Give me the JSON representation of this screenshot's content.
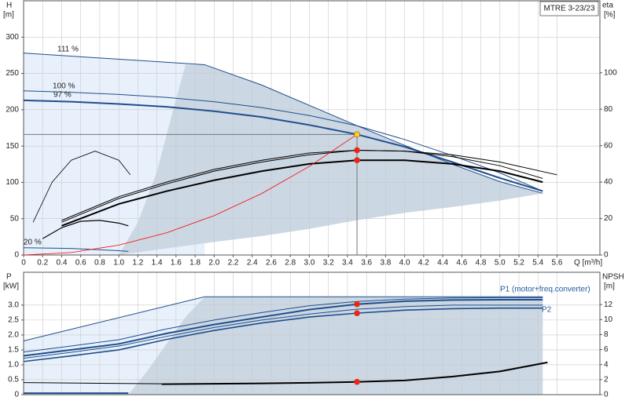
{
  "chart_data": [
    {
      "type": "line",
      "title": "MTRE 3-23/23",
      "ylabel": "H",
      "yunit": "[m]",
      "y2label": "eta",
      "y2unit": "[%]",
      "xlabel": "Q [m³/h]",
      "xlim": [
        0,
        6.05
      ],
      "ylim": [
        0,
        350
      ],
      "y2lim": [
        0,
        139.5
      ],
      "grid": true,
      "duty_lines": true,
      "xticks": [
        0,
        0.2,
        0.4,
        0.6,
        0.8,
        {
          "value": 1,
          "label": "1.0"
        },
        1.2,
        1.4,
        1.6,
        1.8,
        {
          "value": 2,
          "label": "2.0"
        },
        2.2,
        2.4,
        2.6,
        2.8,
        {
          "value": 3,
          "label": "3.0"
        },
        3.2,
        3.4,
        3.6,
        3.8,
        {
          "value": 4,
          "label": "4.0"
        },
        4.2,
        4.4,
        4.6,
        4.8,
        {
          "value": 5,
          "label": "5.0"
        },
        5.2,
        5.4,
        5.6
      ],
      "yticks": [
        0,
        50,
        100,
        150,
        200,
        250,
        300
      ],
      "y2ticks": [
        0,
        20,
        40,
        60,
        80,
        100
      ],
      "areas": [
        {
          "color": "#e8f1fb",
          "x": [
            0,
            1.9,
            1.9,
            0
          ],
          "values": [
            278,
            262,
            0,
            0
          ]
        },
        {
          "color": "#cbd7e3",
          "x": [
            1.0,
            1.2,
            1.4,
            1.55,
            1.7,
            1.9,
            2.5,
            3,
            3.5,
            4,
            4.5,
            5,
            5.45,
            5.0,
            4.5,
            4.0,
            3.5,
            3.0,
            2.5,
            2.0,
            1.5,
            1.1
          ],
          "values": [
            0,
            45,
            115,
            190,
            262,
            262,
            234,
            206,
            178,
            151,
            125,
            101,
            85,
            75,
            66,
            58,
            48,
            36,
            26,
            18,
            9,
            2
          ]
        }
      ],
      "series": [
        {
          "name": "111 %",
          "color": "#1f4e8c",
          "linewidth": 1,
          "x": [
            0,
            1.9,
            2.5,
            3,
            3.5,
            4,
            4.5,
            5,
            5.45
          ],
          "values": [
            278,
            262,
            234,
            206,
            178,
            151,
            125,
            101,
            85
          ]
        },
        {
          "name": "100 %",
          "color": "#1f4e8c",
          "linewidth": 1,
          "x": [
            0,
            0.5,
            1,
            1.5,
            2,
            2.5,
            3,
            3.5,
            4,
            4.5,
            5,
            5.45
          ],
          "values": [
            226,
            224,
            221,
            217,
            211,
            203,
            192,
            178,
            159,
            137,
            113,
            88
          ]
        },
        {
          "name": "97 %",
          "color": "#1f4e8c",
          "linewidth": 2,
          "x": [
            0,
            0.5,
            1,
            1.5,
            2,
            2.5,
            3,
            3.5,
            4,
            4.5,
            5,
            5.45
          ],
          "values": [
            213,
            211,
            208,
            204,
            198,
            190,
            179,
            166,
            149,
            128,
            106,
            88
          ]
        },
        {
          "name": "20 %",
          "color": "#1f4e8c",
          "linewidth": 1,
          "x": [
            0,
            0.5,
            1,
            1.1
          ],
          "values": [
            10,
            9,
            6,
            5
          ]
        },
        {
          "axis": "y2",
          "color": "#000000",
          "linewidth": 2,
          "x": [
            0.4,
            1,
            1.5,
            2,
            2.5,
            3,
            3.5,
            4,
            4.5,
            5,
            5.45
          ],
          "values": [
            16,
            28,
            35,
            41,
            46,
            50,
            52,
            52,
            50,
            46,
            40
          ]
        },
        {
          "axis": "y2",
          "color": "#000000",
          "linewidth": 1,
          "x": [
            0.4,
            1,
            1.5,
            2,
            2.5,
            3,
            3.5,
            4,
            4.5,
            5,
            5.45
          ],
          "values": [
            18,
            31,
            39,
            46,
            51,
            55,
            57.5,
            57,
            54,
            49,
            42
          ]
        },
        {
          "axis": "y2",
          "color": "#000000",
          "linewidth": 1,
          "x": [
            0.4,
            1,
            1.5,
            2,
            2.5,
            3,
            3.5,
            4,
            4.5,
            5,
            5.6
          ],
          "values": [
            19,
            32,
            40,
            47,
            52,
            56,
            57.5,
            57,
            55,
            51,
            44
          ]
        },
        {
          "axis": "y2",
          "color": "#000000",
          "linewidth": 0.8,
          "x": [
            0.1,
            0.3,
            0.5,
            0.75,
            1,
            1.12
          ],
          "values": [
            18,
            40,
            52,
            57,
            52,
            44
          ]
        },
        {
          "axis": "y2",
          "color": "#000000",
          "linewidth": 1.2,
          "x": [
            0.2,
            0.4,
            0.6,
            0.8,
            1,
            1.1
          ],
          "values": [
            9,
            15,
            18.5,
            19,
            17.5,
            16
          ]
        },
        {
          "color": "#ff0000",
          "linewidth": 0.8,
          "x": [
            0,
            0.5,
            1,
            1.5,
            2,
            2.5,
            3,
            3.5
          ],
          "values": [
            0,
            3.4,
            13.6,
            30.5,
            54.2,
            84.7,
            122,
            166
          ]
        }
      ],
      "points": [
        {
          "x": 3.5,
          "value": 166,
          "color": "#ffd21f"
        },
        {
          "x": 3.5,
          "value": 57.5,
          "axis": "y2",
          "color": "#ff1a1a"
        },
        {
          "x": 3.5,
          "value": 52,
          "axis": "y2",
          "color": "#ff1a1a"
        }
      ]
    },
    {
      "type": "line",
      "ylabel": "P",
      "yunit": "[kW]",
      "y2label": "NPSH",
      "y2unit": "[m]",
      "xlim": [
        0,
        6.05
      ],
      "ylim": [
        0,
        4.1
      ],
      "y2lim": [
        0,
        16.3
      ],
      "grid": true,
      "yticks": [
        0,
        0.5,
        {
          "value": 1,
          "label": "1.0"
        },
        1.5,
        {
          "value": 2,
          "label": "2.0"
        },
        2.5,
        {
          "value": 3,
          "label": "3.0"
        }
      ],
      "y2ticks": [
        0,
        2,
        4,
        6,
        8,
        10,
        12
      ],
      "areas": [
        {
          "color": "#e8f1fb",
          "x": [
            0,
            1.9,
            1.9,
            0
          ],
          "values": [
            1.8,
            3.28,
            0,
            0
          ]
        },
        {
          "color": "#cbd7e3",
          "x": [
            1.1,
            1.3,
            1.5,
            1.7,
            1.9,
            5.45,
            5.45
          ],
          "values": [
            0,
            0.8,
            1.7,
            2.6,
            3.28,
            3.28,
            0
          ]
        }
      ],
      "series": [
        {
          "color": "#1f4e8c",
          "linewidth": 1,
          "x": [
            0,
            1.9,
            5.45
          ],
          "values": [
            1.8,
            3.28,
            3.28
          ]
        },
        {
          "color": "#1f4e8c",
          "linewidth": 1,
          "x": [
            0,
            0.5,
            1,
            1.5,
            2,
            2.5,
            3,
            3.5,
            4,
            4.5,
            5,
            5.45
          ],
          "values": [
            1.43,
            1.63,
            1.84,
            2.2,
            2.5,
            2.75,
            2.98,
            3.12,
            3.2,
            3.24,
            3.25,
            3.25
          ]
        },
        {
          "color": "#1f4e8c",
          "linewidth": 2,
          "x": [
            0,
            0.5,
            1,
            1.5,
            2,
            2.5,
            3,
            3.5,
            4,
            4.5,
            5,
            5.45
          ],
          "values": [
            1.3,
            1.5,
            1.7,
            2.05,
            2.35,
            2.6,
            2.85,
            3.03,
            3.13,
            3.17,
            3.18,
            3.18
          ]
        },
        {
          "color": "#1f4e8c",
          "linewidth": 1,
          "x": [
            0,
            0.5,
            1,
            1.5,
            2,
            2.5,
            3,
            3.5,
            4,
            4.5,
            5,
            5.45
          ],
          "values": [
            1.22,
            1.42,
            1.63,
            1.95,
            2.25,
            2.5,
            2.7,
            2.86,
            2.95,
            3.0,
            3.0,
            3.0
          ]
        },
        {
          "color": "#1f4e8c",
          "linewidth": 1.6,
          "x": [
            0,
            0.5,
            1,
            1.5,
            2,
            2.5,
            3,
            3.5,
            4,
            4.5,
            5,
            5.45
          ],
          "values": [
            1.11,
            1.3,
            1.5,
            1.85,
            2.15,
            2.4,
            2.6,
            2.73,
            2.83,
            2.88,
            2.9,
            2.9
          ]
        },
        {
          "color": "#1f4e8c",
          "linewidth": 2,
          "x": [
            0,
            1.1
          ],
          "values": [
            0.05,
            0.05
          ]
        },
        {
          "axis": "y2",
          "color": "#000000",
          "linewidth": 2,
          "x": [
            1.45,
            2,
            2.5,
            3,
            3.5,
            4,
            4.5,
            5,
            5.5
          ],
          "values": [
            1.4,
            1.45,
            1.5,
            1.58,
            1.7,
            1.9,
            2.4,
            3.1,
            4.3
          ]
        },
        {
          "axis": "y2",
          "color": "#000000",
          "linewidth": 1,
          "x": [
            0,
            1.45
          ],
          "values": [
            1.6,
            1.45
          ]
        }
      ],
      "points": [
        {
          "x": 3.5,
          "value": 3.03,
          "color": "#ff1a1a"
        },
        {
          "x": 3.5,
          "value": 2.73,
          "color": "#ff1a1a"
        },
        {
          "x": 3.5,
          "value": 1.7,
          "axis": "y2",
          "color": "#ff1a1a"
        }
      ],
      "annotations": [
        {
          "text": "P1 (motor+freq.converter)",
          "color": "#1f5aa0"
        },
        {
          "text": "P2",
          "color": "#1f5aa0"
        }
      ]
    }
  ]
}
